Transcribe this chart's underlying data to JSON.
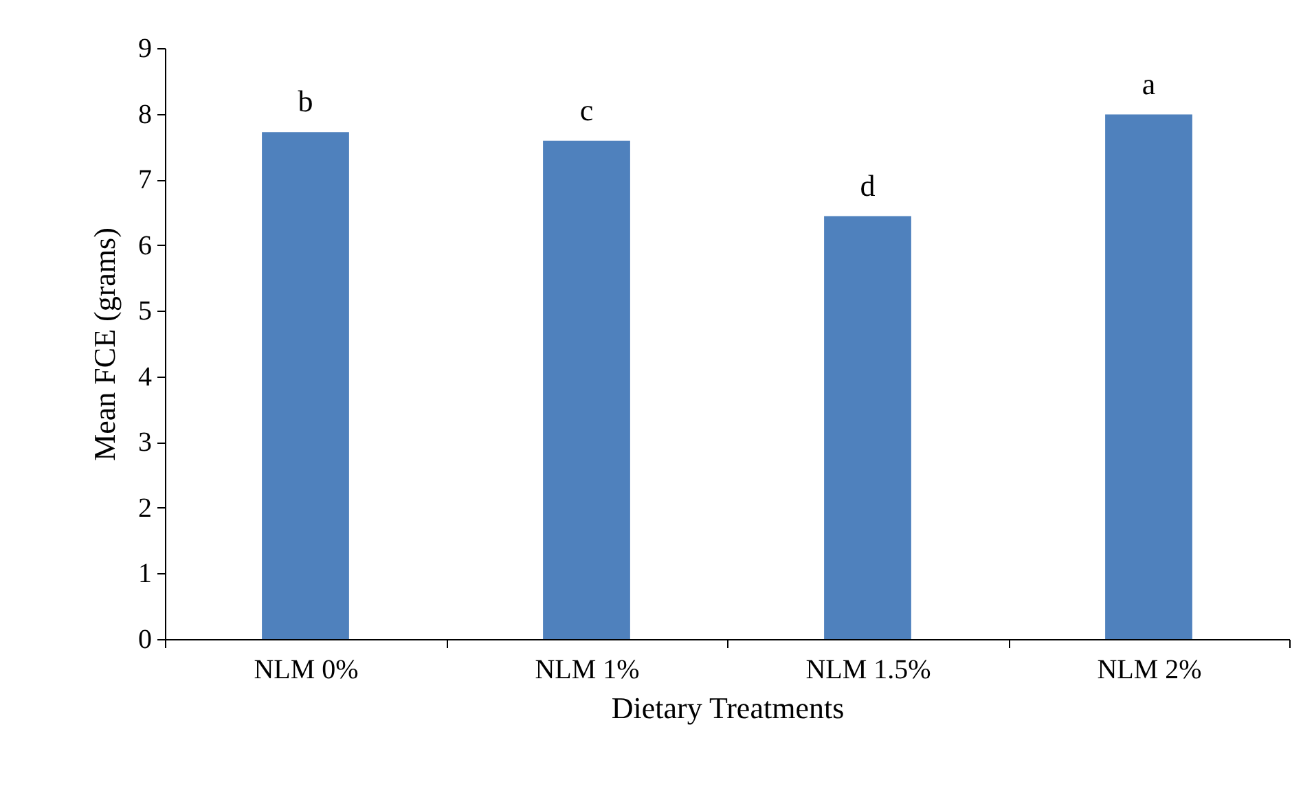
{
  "chart_data": {
    "type": "bar",
    "xlabel": "Dietary Treatments",
    "ylabel": "Mean FCE (grams)",
    "categories": [
      "NLM 0%",
      "NLM 1%",
      "NLM 1.5%",
      "NLM 2%"
    ],
    "values": [
      7.72,
      7.59,
      6.44,
      7.99
    ],
    "color": "#4f81bd",
    "ylim": [
      0,
      9
    ],
    "yticks": [
      0,
      1,
      2,
      3,
      4,
      5,
      6,
      7,
      8,
      9
    ],
    "grid": false,
    "annotations": [
      {
        "text": "b",
        "x": "NLM 0%",
        "y": 7.72
      },
      {
        "text": "c",
        "x": "NLM 1%",
        "y": 7.59
      },
      {
        "text": "d",
        "x": "NLM 1.5%",
        "y": 6.44
      },
      {
        "text": "a",
        "x": "NLM 2%",
        "y": 7.99
      }
    ]
  }
}
